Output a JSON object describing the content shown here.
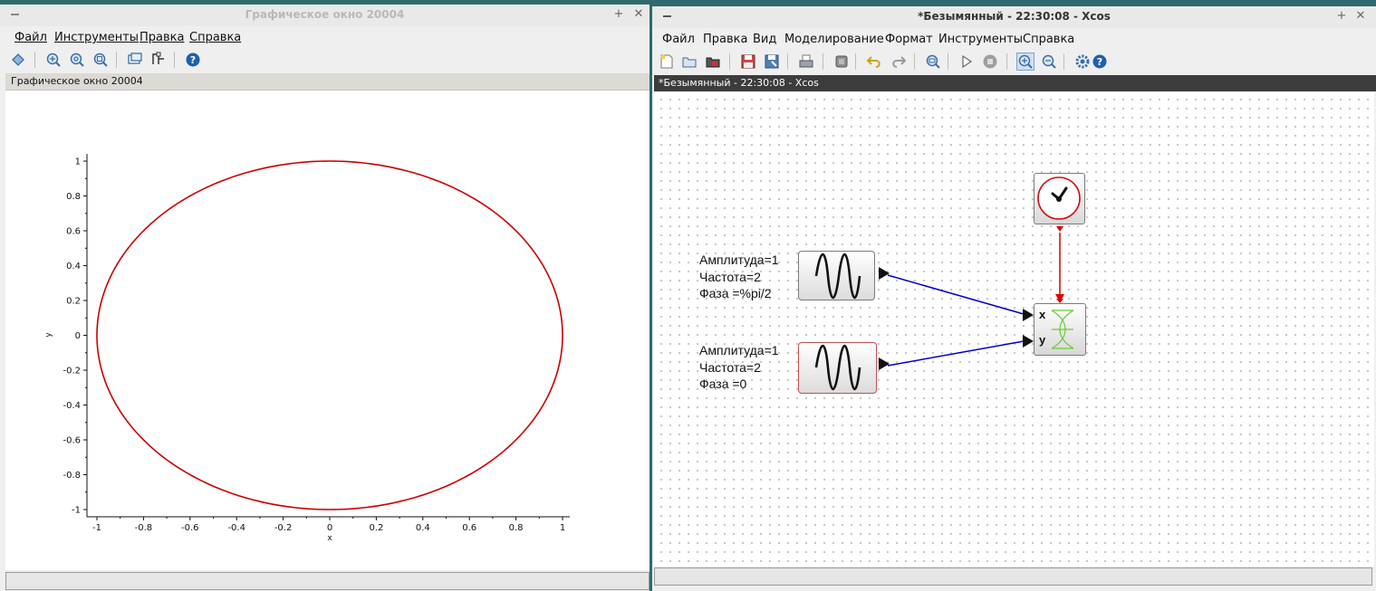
{
  "graphics_window": {
    "title": "Графическое окно 20004",
    "menu": [
      "Файл",
      "Инструменты",
      "Правка",
      "Справка"
    ],
    "panel_label": "Графическое окно 20004",
    "toolbar_icons": [
      "rotate-icon",
      "zoom-in-icon",
      "zoom-reset-icon",
      "zoom-area-icon",
      "datatip-icon",
      "edit-plot-icon",
      "help-icon"
    ]
  },
  "chart_data": {
    "type": "line",
    "title": "",
    "xlabel": "x",
    "ylabel": "y",
    "xlim": [
      -1,
      1
    ],
    "ylim": [
      -1,
      1
    ],
    "x_ticks": [
      "-1",
      "-0.8",
      "-0.6",
      "-0.4",
      "-0.2",
      "0",
      "0.2",
      "0.4",
      "0.6",
      "0.8",
      "1"
    ],
    "y_ticks": [
      "1",
      "0.8",
      "0.6",
      "0.4",
      "0.2",
      "0",
      "-0.2",
      "-0.4",
      "-0.6",
      "-0.8",
      "-1"
    ],
    "series": [
      {
        "color": "#cc0000",
        "parametric": {
          "x": "sin(2t + pi/2)",
          "y": "sin(2t)"
        }
      }
    ],
    "grid": false
  },
  "xcos_window": {
    "title": "*Безымянный - 22:30:08 - Xcos",
    "tab_title": "*Безымянный - 22:30:08 - Xcos",
    "menu": [
      "Файл",
      "Правка",
      "Вид",
      "Моделирование",
      "Формат",
      "Инструменты",
      "Справка"
    ],
    "toolbar_icons": [
      "new-diagram-icon",
      "open-icon",
      "open-in-scilab-icon",
      "save-icon",
      "save-as-icon",
      "print-icon",
      "export-icon",
      "undo-icon",
      "redo-icon",
      "fit-diagram-icon",
      "start-icon",
      "stop-icon",
      "zoom-in-icon",
      "zoom-out-icon",
      "setup-icon",
      "help-icon"
    ],
    "blocks": {
      "sine1": {
        "label_lines": [
          "Амплитуда=1",
          "Частота=2",
          "Фаза =%pi/2"
        ]
      },
      "sine2": {
        "label_lines": [
          "Амплитуда=1",
          "Частота=2",
          "Фаза =0"
        ]
      },
      "scope": {
        "port_x": "x",
        "port_y": "y"
      }
    },
    "colors": {
      "regular_link": "#0000cc",
      "activation_link": "#e00000",
      "scope_curve": "#66cc33"
    }
  }
}
